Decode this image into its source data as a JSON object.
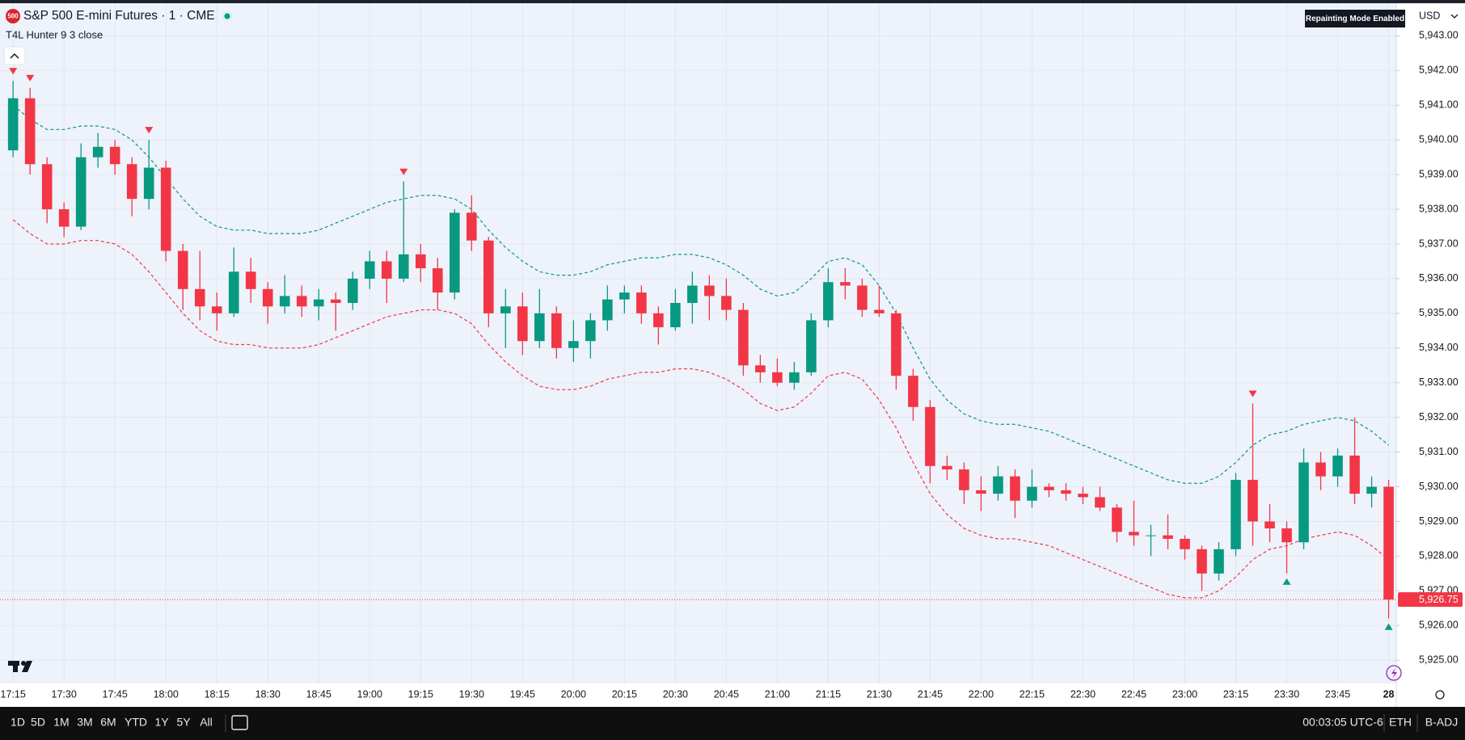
{
  "header": {
    "badge": "500",
    "symbol": "S&P 500 E-mini Futures · 1 · CME",
    "indicator": "T4L Hunter 9 3 close",
    "notice": "Repainting Mode Enabled",
    "currency": "USD"
  },
  "toolbar": {
    "ranges": [
      "1D",
      "5D",
      "1M",
      "3M",
      "6M",
      "YTD",
      "1Y",
      "5Y",
      "All"
    ],
    "clock": "00:03:05 UTC-6",
    "session": "ETH",
    "adjustment": "B-ADJ"
  },
  "chart_data": {
    "type": "candlestick",
    "up_color": "#089981",
    "down_color": "#f23645",
    "grid": true,
    "open": [
      5939.7,
      5941.2,
      5939.3,
      5938.0,
      5937.5,
      5939.5,
      5939.8,
      5939.3,
      5938.3,
      5939.2,
      5936.8,
      5935.7,
      5935.2,
      5935.0,
      5936.2,
      5935.7,
      5935.2,
      5935.5,
      5935.2,
      5935.4,
      5935.3,
      5936.0,
      5936.5,
      5936.0,
      5936.7,
      5936.3,
      5935.6,
      5937.9,
      5937.1,
      5935.0,
      5935.2,
      5934.2,
      5935.0,
      5934.0,
      5934.2,
      5934.8,
      5935.4,
      5935.6,
      5935.0,
      5934.6,
      5935.3,
      5935.8,
      5935.5,
      5935.1,
      5933.5,
      5933.3,
      5933.0,
      5933.3,
      5934.8,
      5935.9,
      5935.8,
      5935.1,
      5935.0,
      5933.2,
      5932.3,
      5930.6,
      5930.5,
      5929.9,
      5929.8,
      5930.3,
      5929.6,
      5930.0,
      5929.9,
      5929.8,
      5929.7,
      5929.4,
      5928.7,
      5928.6,
      5928.6,
      5928.5,
      5928.2,
      5927.5,
      5928.2,
      5930.2,
      5929.0,
      5928.8,
      5928.4,
      5930.7,
      5930.3,
      5930.9,
      5929.8,
      5930.0
    ],
    "high": [
      5941.7,
      5941.5,
      5939.5,
      5938.2,
      5939.9,
      5940.2,
      5940.0,
      5939.5,
      5940.0,
      5939.4,
      5937.0,
      5936.8,
      5935.6,
      5936.9,
      5936.6,
      5935.9,
      5936.1,
      5935.8,
      5935.7,
      5935.6,
      5936.2,
      5936.8,
      5936.8,
      5938.8,
      5937.0,
      5936.6,
      5938.0,
      5938.4,
      5937.2,
      5935.7,
      5935.6,
      5935.7,
      5935.2,
      5934.8,
      5935.0,
      5935.8,
      5935.8,
      5935.8,
      5935.2,
      5935.7,
      5936.2,
      5936.1,
      5936.0,
      5935.3,
      5933.8,
      5933.7,
      5933.6,
      5935.0,
      5936.3,
      5936.3,
      5936.0,
      5935.8,
      5935.1,
      5933.4,
      5932.5,
      5930.9,
      5930.7,
      5930.3,
      5930.6,
      5930.5,
      5930.5,
      5930.1,
      5930.1,
      5930.0,
      5930.0,
      5929.5,
      5929.6,
      5928.9,
      5929.2,
      5928.6,
      5928.3,
      5928.4,
      5930.4,
      5932.4,
      5929.5,
      5929.0,
      5931.1,
      5931.0,
      5931.1,
      5932.0,
      5930.3,
      5930.2
    ],
    "low": [
      5939.5,
      5939.0,
      5937.6,
      5937.2,
      5937.4,
      5939.2,
      5939.0,
      5937.8,
      5938.0,
      5936.5,
      5935.1,
      5934.8,
      5934.5,
      5934.9,
      5935.3,
      5934.7,
      5935.0,
      5934.9,
      5934.8,
      5934.5,
      5935.1,
      5935.7,
      5935.3,
      5935.9,
      5935.9,
      5935.1,
      5935.4,
      5936.8,
      5934.6,
      5934.0,
      5933.8,
      5934.0,
      5933.7,
      5933.6,
      5933.7,
      5934.5,
      5935.0,
      5934.7,
      5934.1,
      5934.5,
      5934.7,
      5934.8,
      5934.8,
      5933.2,
      5933.0,
      5932.9,
      5932.8,
      5933.2,
      5934.6,
      5935.4,
      5934.9,
      5934.9,
      5932.8,
      5931.9,
      5930.1,
      5930.2,
      5929.5,
      5929.3,
      5929.6,
      5929.1,
      5929.4,
      5929.7,
      5929.6,
      5929.5,
      5929.3,
      5928.4,
      5928.3,
      5928.0,
      5928.2,
      5927.9,
      5927.0,
      5927.3,
      5928.0,
      5928.3,
      5928.4,
      5927.5,
      5928.2,
      5929.9,
      5930.0,
      5929.5,
      5929.4,
      5926.2
    ],
    "close": [
      5941.2,
      5939.3,
      5938.0,
      5937.5,
      5939.5,
      5939.8,
      5939.3,
      5938.3,
      5939.2,
      5936.8,
      5935.7,
      5935.2,
      5935.0,
      5936.2,
      5935.7,
      5935.2,
      5935.5,
      5935.2,
      5935.4,
      5935.3,
      5936.0,
      5936.5,
      5936.0,
      5936.7,
      5936.3,
      5935.6,
      5937.9,
      5937.1,
      5935.0,
      5935.2,
      5934.2,
      5935.0,
      5934.0,
      5934.2,
      5934.8,
      5935.4,
      5935.6,
      5935.0,
      5934.6,
      5935.3,
      5935.8,
      5935.5,
      5935.1,
      5933.5,
      5933.3,
      5933.0,
      5933.3,
      5934.8,
      5935.9,
      5935.8,
      5935.1,
      5935.0,
      5933.2,
      5932.3,
      5930.6,
      5930.5,
      5929.9,
      5929.8,
      5930.3,
      5929.6,
      5930.0,
      5929.9,
      5929.8,
      5929.7,
      5929.4,
      5928.7,
      5928.6,
      5928.6,
      5928.5,
      5928.2,
      5927.5,
      5928.2,
      5930.2,
      5929.0,
      5928.8,
      5928.4,
      5930.7,
      5930.3,
      5930.9,
      5929.8,
      5930.0,
      5926.75
    ],
    "upper_band": {
      "color": "#089981",
      "values": [
        5941.0,
        5940.6,
        5940.3,
        5940.3,
        5940.4,
        5940.4,
        5940.3,
        5940.0,
        5939.5,
        5938.9,
        5938.3,
        5937.8,
        5937.5,
        5937.4,
        5937.4,
        5937.3,
        5937.3,
        5937.3,
        5937.4,
        5937.6,
        5937.8,
        5938.0,
        5938.2,
        5938.3,
        5938.4,
        5938.4,
        5938.3,
        5938.0,
        5937.4,
        5936.9,
        5936.5,
        5936.2,
        5936.1,
        5936.1,
        5936.2,
        5936.4,
        5936.5,
        5936.6,
        5936.6,
        5936.7,
        5936.7,
        5936.6,
        5936.4,
        5936.1,
        5935.7,
        5935.5,
        5935.6,
        5936.0,
        5936.5,
        5936.6,
        5936.4,
        5935.8,
        5935.0,
        5934.0,
        5933.1,
        5932.5,
        5932.1,
        5931.9,
        5931.8,
        5931.8,
        5931.7,
        5931.6,
        5931.4,
        5931.2,
        5931.0,
        5930.8,
        5930.6,
        5930.4,
        5930.2,
        5930.1,
        5930.1,
        5930.3,
        5930.7,
        5931.2,
        5931.5,
        5931.6,
        5931.8,
        5931.9,
        5932.0,
        5931.9,
        5931.6,
        5931.2
      ]
    },
    "lower_band": {
      "color": "#f23645",
      "values": [
        5937.7,
        5937.3,
        5937.0,
        5937.0,
        5937.1,
        5937.1,
        5937.0,
        5936.7,
        5936.2,
        5935.6,
        5935.0,
        5934.5,
        5934.2,
        5934.1,
        5934.1,
        5934.0,
        5934.0,
        5934.0,
        5934.1,
        5934.3,
        5934.5,
        5934.7,
        5934.9,
        5935.0,
        5935.1,
        5935.1,
        5935.0,
        5934.7,
        5934.1,
        5933.6,
        5933.2,
        5932.9,
        5932.8,
        5932.8,
        5932.9,
        5933.1,
        5933.2,
        5933.3,
        5933.3,
        5933.4,
        5933.4,
        5933.3,
        5933.1,
        5932.8,
        5932.4,
        5932.2,
        5932.3,
        5932.7,
        5933.2,
        5933.3,
        5933.1,
        5932.5,
        5931.7,
        5930.7,
        5929.8,
        5929.2,
        5928.8,
        5928.6,
        5928.5,
        5928.5,
        5928.4,
        5928.3,
        5928.1,
        5927.9,
        5927.7,
        5927.5,
        5927.3,
        5927.1,
        5926.9,
        5926.8,
        5926.8,
        5927.0,
        5927.4,
        5927.9,
        5928.2,
        5928.3,
        5928.5,
        5928.6,
        5928.7,
        5928.6,
        5928.3,
        5927.9
      ]
    },
    "sell_signals": [
      0,
      1,
      8,
      23,
      73
    ],
    "buy_signals": [
      75,
      81
    ],
    "last_price": {
      "value": 5926.75,
      "label": "5,926.75"
    },
    "xlim": [
      -0.77,
      81.45
    ],
    "xticks": [
      {
        "value": 0,
        "label": "17:15"
      },
      {
        "value": 3,
        "label": "17:30"
      },
      {
        "value": 6,
        "label": "17:45"
      },
      {
        "value": 9,
        "label": "18:00"
      },
      {
        "value": 12,
        "label": "18:15"
      },
      {
        "value": 15,
        "label": "18:30"
      },
      {
        "value": 18,
        "label": "18:45"
      },
      {
        "value": 21,
        "label": "19:00"
      },
      {
        "value": 24,
        "label": "19:15"
      },
      {
        "value": 27,
        "label": "19:30"
      },
      {
        "value": 30,
        "label": "19:45"
      },
      {
        "value": 33,
        "label": "20:00"
      },
      {
        "value": 36,
        "label": "20:15"
      },
      {
        "value": 39,
        "label": "20:30"
      },
      {
        "value": 42,
        "label": "20:45"
      },
      {
        "value": 45,
        "label": "21:00"
      },
      {
        "value": 48,
        "label": "21:15"
      },
      {
        "value": 51,
        "label": "21:30"
      },
      {
        "value": 54,
        "label": "21:45"
      },
      {
        "value": 57,
        "label": "22:00"
      },
      {
        "value": 60,
        "label": "22:15"
      },
      {
        "value": 63,
        "label": "22:30"
      },
      {
        "value": 66,
        "label": "22:45"
      },
      {
        "value": 69,
        "label": "23:00"
      },
      {
        "value": 72,
        "label": "23:15"
      },
      {
        "value": 75,
        "label": "23:30"
      },
      {
        "value": 78,
        "label": "23:45"
      },
      {
        "value": 81,
        "label": "28"
      }
    ],
    "ylim": [
      5924.33,
      5943.94
    ],
    "yticks": [
      {
        "value": 5925,
        "label": "5,925.00"
      },
      {
        "value": 5926,
        "label": "5,926.00"
      },
      {
        "value": 5927,
        "label": "5,927.00"
      },
      {
        "value": 5928,
        "label": "5,928.00"
      },
      {
        "value": 5929,
        "label": "5,929.00"
      },
      {
        "value": 5930,
        "label": "5,930.00"
      },
      {
        "value": 5931,
        "label": "5,931.00"
      },
      {
        "value": 5932,
        "label": "5,932.00"
      },
      {
        "value": 5933,
        "label": "5,933.00"
      },
      {
        "value": 5934,
        "label": "5,934.00"
      },
      {
        "value": 5935,
        "label": "5,935.00"
      },
      {
        "value": 5936,
        "label": "5,936.00"
      },
      {
        "value": 5937,
        "label": "5,937.00"
      },
      {
        "value": 5938,
        "label": "5,938.00"
      },
      {
        "value": 5939,
        "label": "5,939.00"
      },
      {
        "value": 5940,
        "label": "5,940.00"
      },
      {
        "value": 5941,
        "label": "5,941.00"
      },
      {
        "value": 5942,
        "label": "5,942.00"
      },
      {
        "value": 5943,
        "label": "5,943.00"
      }
    ]
  }
}
